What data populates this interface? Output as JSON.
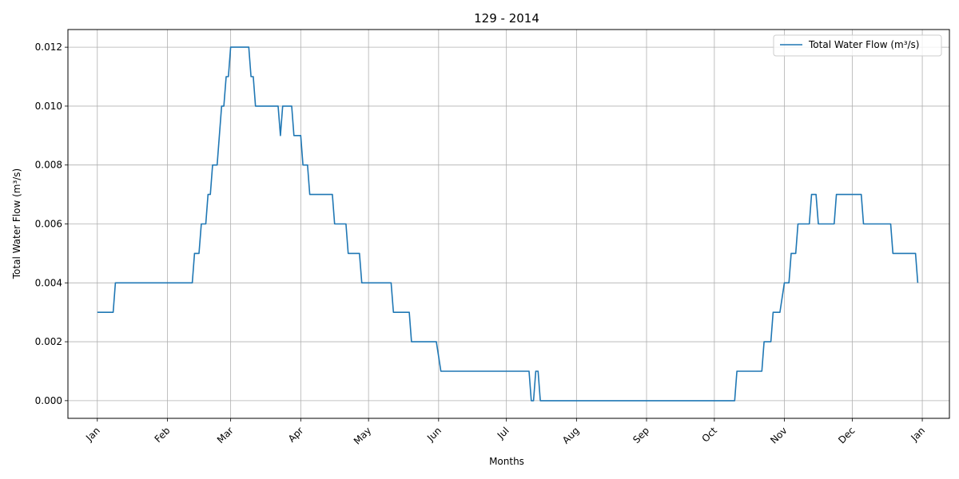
{
  "chart_data": {
    "type": "line",
    "title": "129 - 2014",
    "xlabel": "Months",
    "ylabel": "Total Water Flow (m³/s)",
    "x_ticks": [
      "Jan",
      "Feb",
      "Mar",
      "Apr",
      "May",
      "Jun",
      "Jul",
      "Aug",
      "Sep",
      "Oct",
      "Nov",
      "Dec",
      "Jan"
    ],
    "y_ticks": [
      "0.000",
      "0.002",
      "0.004",
      "0.006",
      "0.008",
      "0.010",
      "0.012"
    ],
    "ylim": [
      -0.0006,
      0.0126
    ],
    "xlim": [
      "2013-12-19",
      "2015-01-13"
    ],
    "grid": true,
    "legend_position": "top-right",
    "color": "#1f77b4",
    "series": [
      {
        "name": "Total Water Flow (m³/s)",
        "points": [
          [
            "2014-01-01",
            0.003
          ],
          [
            "2014-01-08",
            0.003
          ],
          [
            "2014-01-09",
            0.004
          ],
          [
            "2014-02-12",
            0.004
          ],
          [
            "2014-02-13",
            0.005
          ],
          [
            "2014-02-15",
            0.005
          ],
          [
            "2014-02-16",
            0.006
          ],
          [
            "2014-02-18",
            0.006
          ],
          [
            "2014-02-19",
            0.007
          ],
          [
            "2014-02-20",
            0.007
          ],
          [
            "2014-02-21",
            0.008
          ],
          [
            "2014-02-23",
            0.008
          ],
          [
            "2014-02-25",
            0.01
          ],
          [
            "2014-02-26",
            0.01
          ],
          [
            "2014-02-27",
            0.011
          ],
          [
            "2014-02-28",
            0.011
          ],
          [
            "2014-03-01",
            0.012
          ],
          [
            "2014-03-09",
            0.012
          ],
          [
            "2014-03-10",
            0.011
          ],
          [
            "2014-03-11",
            0.011
          ],
          [
            "2014-03-12",
            0.01
          ],
          [
            "2014-03-22",
            0.01
          ],
          [
            "2014-03-23",
            0.009
          ],
          [
            "2014-03-24",
            0.01
          ],
          [
            "2014-03-28",
            0.01
          ],
          [
            "2014-03-29",
            0.009
          ],
          [
            "2014-04-01",
            0.009
          ],
          [
            "2014-04-02",
            0.008
          ],
          [
            "2014-04-04",
            0.008
          ],
          [
            "2014-04-05",
            0.007
          ],
          [
            "2014-04-15",
            0.007
          ],
          [
            "2014-04-16",
            0.006
          ],
          [
            "2014-04-21",
            0.006
          ],
          [
            "2014-04-22",
            0.005
          ],
          [
            "2014-04-27",
            0.005
          ],
          [
            "2014-04-28",
            0.004
          ],
          [
            "2014-05-11",
            0.004
          ],
          [
            "2014-05-12",
            0.003
          ],
          [
            "2014-05-19",
            0.003
          ],
          [
            "2014-05-20",
            0.002
          ],
          [
            "2014-05-31",
            0.002
          ],
          [
            "2014-06-02",
            0.001
          ],
          [
            "2014-07-11",
            0.001
          ],
          [
            "2014-07-12",
            0.0
          ],
          [
            "2014-07-13",
            0.0
          ],
          [
            "2014-07-14",
            0.001
          ],
          [
            "2014-07-15",
            0.001
          ],
          [
            "2014-07-16",
            0.0
          ],
          [
            "2014-10-10",
            0.0
          ],
          [
            "2014-10-11",
            0.001
          ],
          [
            "2014-10-22",
            0.001
          ],
          [
            "2014-10-23",
            0.002
          ],
          [
            "2014-10-26",
            0.002
          ],
          [
            "2014-10-27",
            0.003
          ],
          [
            "2014-10-30",
            0.003
          ],
          [
            "2014-11-01",
            0.004
          ],
          [
            "2014-11-03",
            0.004
          ],
          [
            "2014-11-04",
            0.005
          ],
          [
            "2014-11-06",
            0.005
          ],
          [
            "2014-11-07",
            0.006
          ],
          [
            "2014-11-12",
            0.006
          ],
          [
            "2014-11-13",
            0.007
          ],
          [
            "2014-11-15",
            0.007
          ],
          [
            "2014-11-16",
            0.006
          ],
          [
            "2014-11-23",
            0.006
          ],
          [
            "2014-11-24",
            0.007
          ],
          [
            "2014-12-05",
            0.007
          ],
          [
            "2014-12-06",
            0.006
          ],
          [
            "2014-12-18",
            0.006
          ],
          [
            "2014-12-19",
            0.005
          ],
          [
            "2014-12-29",
            0.005
          ],
          [
            "2014-12-30",
            0.004
          ]
        ]
      }
    ]
  }
}
